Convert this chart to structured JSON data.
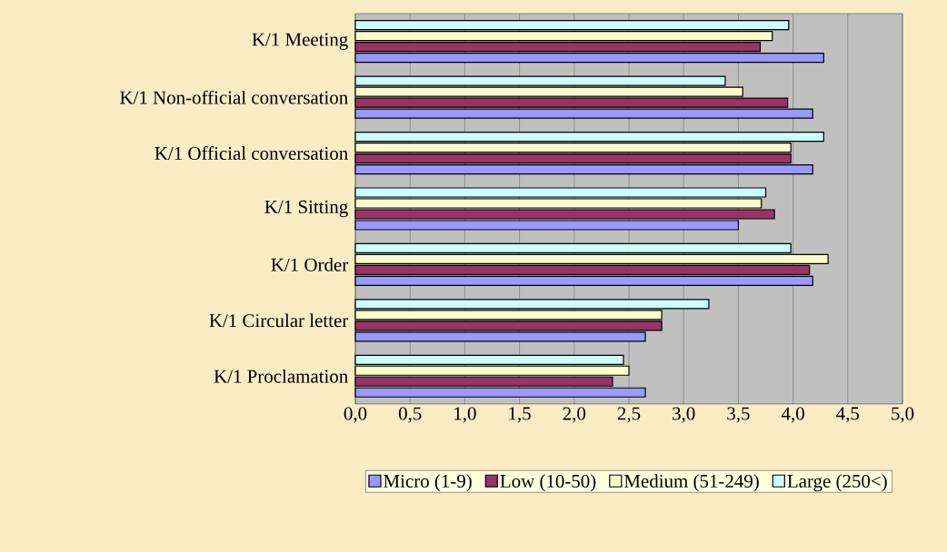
{
  "chart_data": {
    "type": "bar",
    "orientation": "horizontal",
    "categories": [
      "K/1 Meeting",
      "K/1 Non-official conversation",
      "K/1 Official conversation",
      "K/1 Sitting",
      "K/1 Order",
      "K/1 Circular letter",
      "K/1 Proclamation"
    ],
    "series": [
      {
        "name": "Micro (1-9)",
        "color": "#9999ff",
        "values": [
          4.28,
          4.18,
          4.18,
          3.5,
          4.18,
          2.65,
          2.65
        ]
      },
      {
        "name": "Low (10-50)",
        "color": "#993366",
        "values": [
          3.7,
          3.95,
          3.98,
          3.83,
          4.15,
          2.8,
          2.35
        ]
      },
      {
        "name": "Medium (51-249)",
        "color": "#ffffcc",
        "values": [
          3.81,
          3.54,
          3.98,
          3.71,
          4.32,
          2.8,
          2.5
        ]
      },
      {
        "name": "Large (250<)",
        "color": "#ccffff",
        "values": [
          3.96,
          3.38,
          4.28,
          3.75,
          3.98,
          3.23,
          2.45
        ]
      }
    ],
    "xlim": [
      0,
      5
    ],
    "xticks": [
      {
        "value": 0,
        "label": "0,0"
      },
      {
        "value": 0.5,
        "label": "0,5"
      },
      {
        "value": 1,
        "label": "1,0"
      },
      {
        "value": 1.5,
        "label": "1,5"
      },
      {
        "value": 2,
        "label": "2,0"
      },
      {
        "value": 2.5,
        "label": "2,5"
      },
      {
        "value": 3,
        "label": "3,0"
      },
      {
        "value": 3.5,
        "label": "3,5"
      },
      {
        "value": 4,
        "label": "4,0"
      },
      {
        "value": 4.5,
        "label": "4,5"
      },
      {
        "value": 5,
        "label": "5,0"
      }
    ],
    "grid": "x",
    "legend": "bottom"
  }
}
